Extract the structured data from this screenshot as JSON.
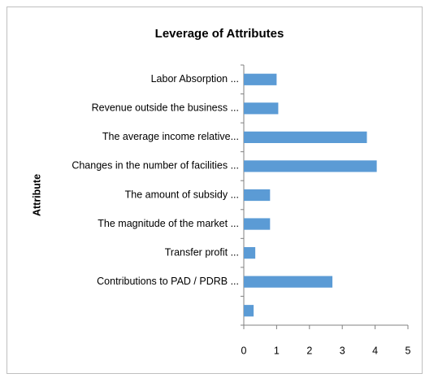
{
  "chart_data": {
    "type": "bar",
    "orientation": "horizontal",
    "title": "Leverage of Attributes",
    "y_label": "Attribute",
    "categories": [
      "Labor Absorption ...",
      "Revenue outside the business ...",
      "The average income relative...",
      "Changes in the number of facilities ...",
      "The amount of subsidy ...",
      "The magnitude of the market ...",
      "Transfer profit ...",
      "Contributions to PAD / PDRB ...",
      null
    ],
    "values": [
      1.0,
      1.05,
      3.75,
      4.05,
      0.8,
      0.8,
      0.35,
      2.7,
      0.3
    ],
    "color": "#5b9bd5",
    "xlim": [
      0,
      5
    ],
    "xticks": [
      0,
      1,
      2,
      3,
      4,
      5
    ],
    "grid": false
  }
}
